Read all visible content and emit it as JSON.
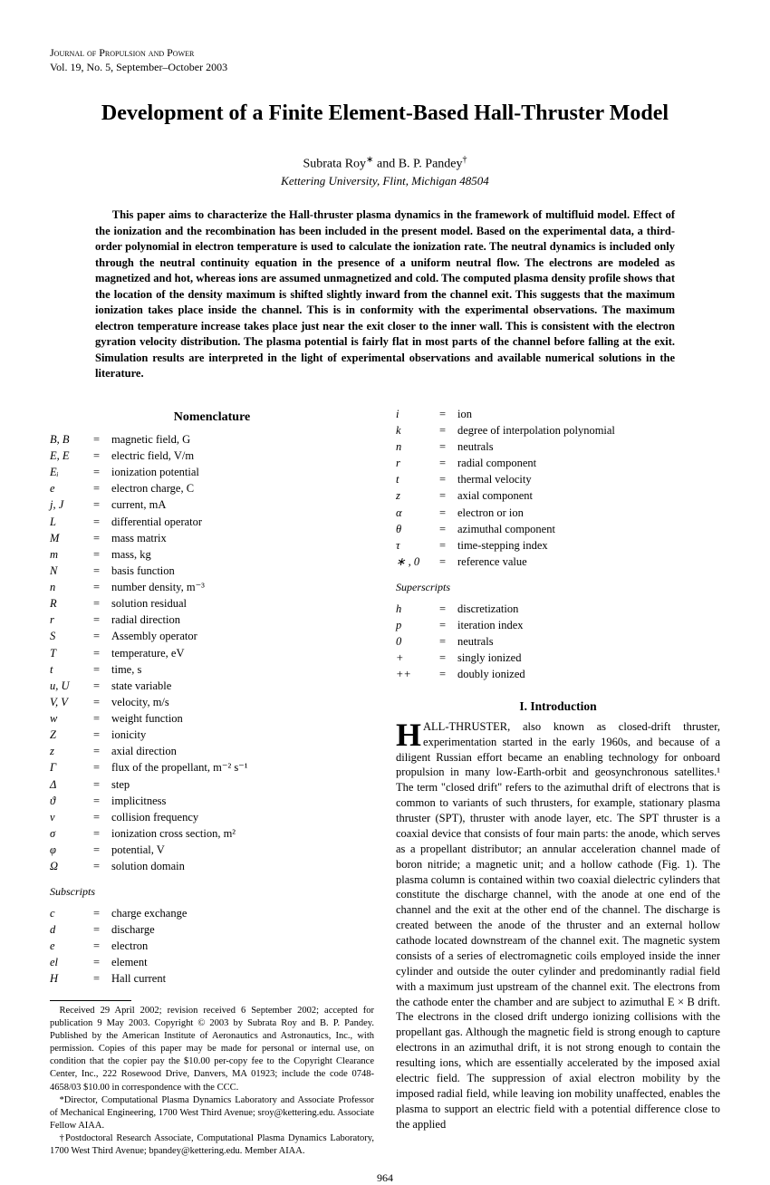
{
  "journal": {
    "name": "Journal of Propulsion and Power",
    "issue": "Vol. 19, No. 5, September–October 2003"
  },
  "title": "Development of a Finite Element-Based Hall-Thruster Model",
  "authors": "Subrata Roy* and B. P. Pandey†",
  "affiliation": "Kettering University, Flint, Michigan 48504",
  "abstract": "This paper aims to characterize the Hall-thruster plasma dynamics in the framework of multifluid model. Effect of the ionization and the recombination has been included in the present model. Based on the experimental data, a third-order polynomial in electron temperature is used to calculate the ionization rate. The neutral dynamics is included only through the neutral continuity equation in the presence of a uniform neutral flow. The electrons are modeled as magnetized and hot, whereas ions are assumed unmagnetized and cold. The computed plasma density profile shows that the location of the density maximum is shifted slightly inward from the channel exit. This suggests that the maximum ionization takes place inside the channel. This is in conformity with the experimental observations. The maximum electron temperature increase takes place just near the exit closer to the inner wall. This is consistent with the electron gyration velocity distribution. The plasma potential is fairly flat in most parts of the channel before falling at the exit. Simulation results are interpreted in the light of experimental observations and available numerical solutions in the literature.",
  "nomenclature_heading": "Nomenclature",
  "nomenclature": [
    {
      "s": "B, B",
      "d": "magnetic field, G"
    },
    {
      "s": "E, E",
      "d": "electric field, V/m"
    },
    {
      "s": "Eᵢ",
      "d": "ionization potential"
    },
    {
      "s": "e",
      "d": "electron charge, C"
    },
    {
      "s": "j, J",
      "d": "current, mA"
    },
    {
      "s": "L",
      "d": "differential operator"
    },
    {
      "s": "M",
      "d": "mass matrix"
    },
    {
      "s": "m",
      "d": "mass, kg"
    },
    {
      "s": "N",
      "d": "basis function"
    },
    {
      "s": "n",
      "d": "number density, m⁻³"
    },
    {
      "s": "R",
      "d": "solution residual"
    },
    {
      "s": "r",
      "d": "radial direction"
    },
    {
      "s": "S",
      "d": "Assembly operator"
    },
    {
      "s": "T",
      "d": "temperature, eV"
    },
    {
      "s": "t",
      "d": "time, s"
    },
    {
      "s": "u, U",
      "d": "state variable"
    },
    {
      "s": "V, V",
      "d": "velocity, m/s"
    },
    {
      "s": "w",
      "d": "weight function"
    },
    {
      "s": "Z",
      "d": "ionicity"
    },
    {
      "s": "z",
      "d": "axial direction"
    },
    {
      "s": "Γ",
      "d": "flux of the propellant, m⁻² s⁻¹"
    },
    {
      "s": "Δ",
      "d": "step"
    },
    {
      "s": "ϑ",
      "d": "implicitness"
    },
    {
      "s": "ν",
      "d": "collision frequency"
    },
    {
      "s": "σ",
      "d": "ionization cross section, m²"
    },
    {
      "s": "φ",
      "d": "potential, V"
    },
    {
      "s": "Ω",
      "d": "solution domain"
    }
  ],
  "subscripts_heading": "Subscripts",
  "subscripts": [
    {
      "s": "c",
      "d": "charge exchange"
    },
    {
      "s": "d",
      "d": "discharge"
    },
    {
      "s": "e",
      "d": "electron"
    },
    {
      "s": "el",
      "d": "element"
    },
    {
      "s": "H",
      "d": "Hall current"
    }
  ],
  "subscripts_col2": [
    {
      "s": "i",
      "d": "ion"
    },
    {
      "s": "k",
      "d": "degree of interpolation polynomial"
    },
    {
      "s": "n",
      "d": "neutrals"
    },
    {
      "s": "r",
      "d": "radial component"
    },
    {
      "s": "t",
      "d": "thermal velocity"
    },
    {
      "s": "z",
      "d": "axial component"
    },
    {
      "s": "α",
      "d": "electron or ion"
    },
    {
      "s": "θ",
      "d": "azimuthal component"
    },
    {
      "s": "τ",
      "d": "time-stepping index"
    },
    {
      "s": "∗ , 0",
      "d": "reference value"
    }
  ],
  "superscripts_heading": "Superscripts",
  "superscripts": [
    {
      "s": "h",
      "d": "discretization"
    },
    {
      "s": "p",
      "d": "iteration index"
    },
    {
      "s": "0",
      "d": "neutrals"
    },
    {
      "s": "+",
      "d": "singly ionized"
    },
    {
      "s": "++",
      "d": "doubly ionized"
    }
  ],
  "intro_heading": "I.   Introduction",
  "intro_dropcap": "H",
  "intro_body": "ALL-THRUSTER, also known as closed-drift thruster, experimentation started in the early 1960s, and because of a diligent Russian effort became an enabling technology for onboard propulsion in many low-Earth-orbit and geosynchronous satellites.¹ The term \"closed drift\" refers to the azimuthal drift of electrons that is common to variants of such thrusters, for example, stationary plasma thruster (SPT), thruster with anode layer, etc. The SPT thruster is a coaxial device that consists of four main parts: the anode, which serves as a propellant distributor; an annular acceleration channel made of boron nitride; a magnetic unit; and a hollow cathode (Fig. 1). The plasma column is contained within two coaxial dielectric cylinders that constitute the discharge channel, with the anode at one end of the channel and the exit at the other end of the channel. The discharge is created between the anode of the thruster and an external hollow cathode located downstream of the channel exit. The magnetic system consists of a series of electromagnetic coils employed inside the inner cylinder and outside the outer cylinder and predominantly radial field with a maximum just upstream of the channel exit. The electrons from the cathode enter the chamber and are subject to azimuthal E × B drift. The electrons in the closed drift undergo ionizing collisions with the propellant gas. Although the magnetic field is strong enough to capture electrons in an azimuthal drift, it is not strong enough to contain the resulting ions, which are essentially accelerated by the imposed axial electric field. The suppression of axial electron mobility by the imposed radial field, while leaving ion mobility unaffected, enables the plasma to support an electric field with a potential difference close to the applied",
  "footnote1": "Received 29 April 2002; revision received 6 September 2002; accepted for publication 9 May 2003. Copyright © 2003 by Subrata Roy and B. P. Pandey. Published by the American Institute of Aeronautics and Astronautics, Inc., with permission. Copies of this paper may be made for personal or internal use, on condition that the copier pay the $10.00 per-copy fee to the Copyright Clearance Center, Inc., 222 Rosewood Drive, Danvers, MA 01923; include the code 0748-4658/03 $10.00 in correspondence with the CCC.",
  "footnote2": "*Director, Computational Plasma Dynamics Laboratory and Associate Professor of Mechanical Engineering, 1700 West Third Avenue; sroy@kettering.edu. Associate Fellow AIAA.",
  "footnote3": "†Postdoctoral Research Associate, Computational Plasma Dynamics Laboratory, 1700 West Third Avenue; bpandey@kettering.edu. Member AIAA.",
  "page_number": "964"
}
